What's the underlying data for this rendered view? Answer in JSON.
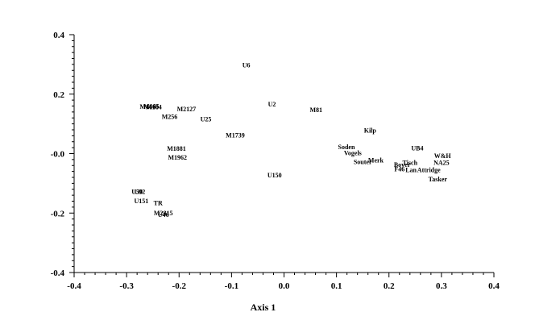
{
  "chart_data": {
    "type": "scatter",
    "title": "",
    "xlabel": "Axis 1",
    "ylabel": "",
    "xlim": [
      -0.4,
      0.4
    ],
    "ylim": [
      -0.4,
      0.4
    ],
    "x_major_ticks": [
      -0.4,
      -0.3,
      -0.2,
      -0.1,
      0.0,
      0.1,
      0.2,
      0.3,
      0.4
    ],
    "x_tick_labels": [
      "-0.4",
      "-0.3",
      "-0.2",
      "-0.1",
      "0.0",
      "0.1",
      "0.2",
      "0.3",
      "0.4"
    ],
    "y_major_ticks": [
      0.4,
      0.2,
      0.0,
      -0.2,
      -0.4
    ],
    "y_tick_labels": [
      "0.4",
      "0.2",
      "-0.0",
      "-0.2",
      "-0.4"
    ],
    "grid": false,
    "legend": "none",
    "points": [
      {
        "label": "U6",
        "x": -0.072,
        "y": 0.295
      },
      {
        "label": "M166",
        "x": -0.26,
        "y": 0.155
      },
      {
        "label": "M165",
        "x": -0.253,
        "y": 0.157
      },
      {
        "label": "M184",
        "x": -0.248,
        "y": 0.154
      },
      {
        "label": "M2127",
        "x": -0.186,
        "y": 0.147
      },
      {
        "label": "M256",
        "x": -0.218,
        "y": 0.121
      },
      {
        "label": "U25",
        "x": -0.149,
        "y": 0.113
      },
      {
        "label": "U2",
        "x": -0.023,
        "y": 0.163
      },
      {
        "label": "M81",
        "x": 0.061,
        "y": 0.145
      },
      {
        "label": "M1739",
        "x": -0.093,
        "y": 0.059
      },
      {
        "label": "Kilp",
        "x": 0.164,
        "y": 0.075
      },
      {
        "label": "M1881",
        "x": -0.205,
        "y": 0.015
      },
      {
        "label": "M1962",
        "x": -0.203,
        "y": -0.015
      },
      {
        "label": "Soden",
        "x": 0.119,
        "y": 0.02
      },
      {
        "label": "Vogels",
        "x": 0.131,
        "y": 0.0
      },
      {
        "label": "UB4",
        "x": 0.254,
        "y": 0.016
      },
      {
        "label": "W&H",
        "x": 0.302,
        "y": -0.01
      },
      {
        "label": "Merk",
        "x": 0.175,
        "y": -0.025
      },
      {
        "label": "Souter",
        "x": 0.15,
        "y": -0.03
      },
      {
        "label": "Tisch",
        "x": 0.24,
        "y": -0.033
      },
      {
        "label": "NA25",
        "x": 0.3,
        "y": -0.033
      },
      {
        "label": "Boyer",
        "x": 0.225,
        "y": -0.04
      },
      {
        "label": "F46",
        "x": 0.22,
        "y": -0.055
      },
      {
        "label": "Lan",
        "x": 0.242,
        "y": -0.058
      },
      {
        "label": "Attridge",
        "x": 0.276,
        "y": -0.058
      },
      {
        "label": "Tasker",
        "x": 0.293,
        "y": -0.088
      },
      {
        "label": "U150",
        "x": -0.018,
        "y": -0.075
      },
      {
        "label": "U50",
        "x": -0.28,
        "y": -0.13
      },
      {
        "label": "U92",
        "x": -0.275,
        "y": -0.13
      },
      {
        "label": "U151",
        "x": -0.272,
        "y": -0.162
      },
      {
        "label": "TR",
        "x": -0.24,
        "y": -0.168
      },
      {
        "label": "M2815",
        "x": -0.23,
        "y": -0.202
      },
      {
        "label": "U46",
        "x": -0.23,
        "y": -0.208
      }
    ]
  }
}
